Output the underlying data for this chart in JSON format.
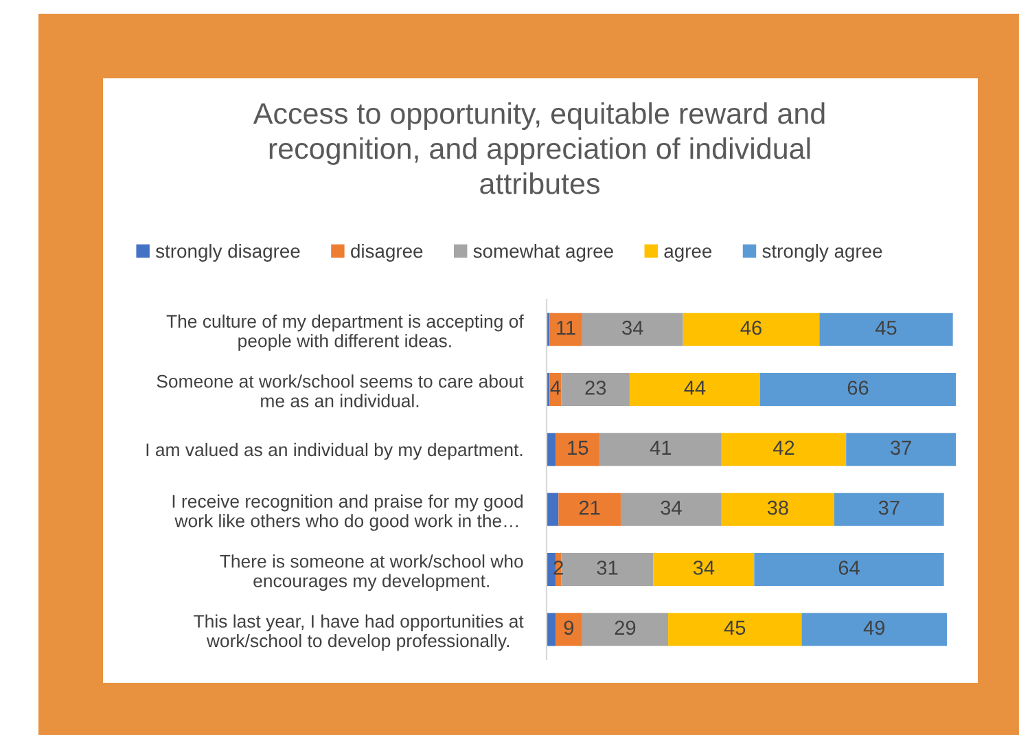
{
  "chart_data": {
    "type": "bar",
    "orientation": "horizontal",
    "stacked": true,
    "title": "Access to opportunity, equitable reward and\nrecognition, and appreciation of individual\nattributes",
    "categories": [
      "The culture of my department is accepting of\npeople with different ideas.",
      "Someone at work/school seems to care about\nme as an individual.",
      "I am valued as an individual by my department.",
      "I receive recognition and praise for my good\nwork like others who do good work in the…",
      "There is someone at work/school who\nencourages my development.",
      "This last year, I have had opportunities at\nwork/school to develop professionally."
    ],
    "series": [
      {
        "name": "strongly disagree",
        "color": "#4472c4",
        "values": [
          1,
          1,
          3,
          4,
          3,
          3
        ],
        "value_labels": [
          null,
          null,
          null,
          null,
          null,
          null
        ]
      },
      {
        "name": "disagree",
        "color": "#ed7d31",
        "values": [
          11,
          4,
          15,
          21,
          2,
          9
        ],
        "value_labels": [
          "11",
          "4",
          "15",
          "21",
          "2",
          "9"
        ]
      },
      {
        "name": "somewhat agree",
        "color": "#a5a5a5",
        "values": [
          34,
          23,
          41,
          34,
          31,
          29
        ],
        "value_labels": [
          "34",
          "23",
          "41",
          "34",
          "31",
          "29"
        ]
      },
      {
        "name": "agree",
        "color": "#ffc000",
        "values": [
          46,
          44,
          42,
          38,
          34,
          45
        ],
        "value_labels": [
          "46",
          "44",
          "42",
          "38",
          "34",
          "45"
        ]
      },
      {
        "name": "strongly agree",
        "color": "#5b9bd5",
        "values": [
          45,
          66,
          37,
          37,
          64,
          49
        ],
        "value_labels": [
          "45",
          "66",
          "37",
          "37",
          "64",
          "49"
        ]
      }
    ],
    "legend": "top",
    "grid": false,
    "tick_labels": "y"
  }
}
